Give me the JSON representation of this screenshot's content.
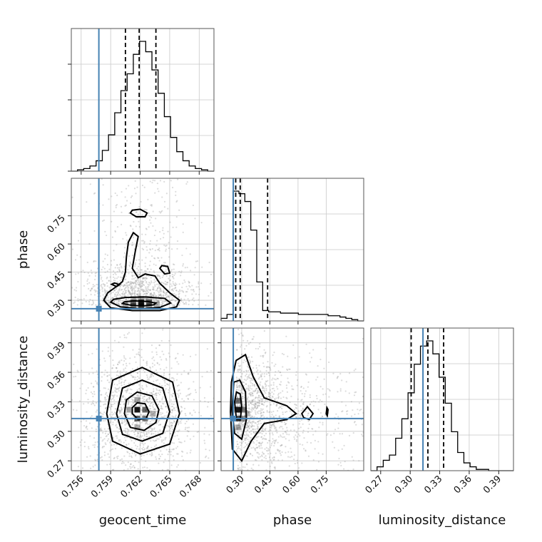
{
  "colors": {
    "truth": "#4682b4",
    "histogram": "#000000",
    "scatter": "#9a9a9a",
    "grid": "#c8c8c8"
  },
  "chart_data": {
    "type": "corner",
    "parameters": [
      "geocent_time",
      "phase",
      "luminosity_distance"
    ],
    "truths": {
      "geocent_time": 0.7578,
      "phase": 0.255,
      "luminosity_distance": 0.313
    },
    "quantiles": {
      "geocent_time": [
        0.7605,
        0.7619,
        0.7636
      ],
      "phase": [
        0.268,
        0.292,
        0.438
      ],
      "luminosity_distance": [
        0.301,
        0.318,
        0.334
      ]
    },
    "ranges": {
      "geocent_time": [
        0.755,
        0.7695
      ],
      "phase": [
        0.19,
        0.95
      ],
      "luminosity_distance": [
        0.26,
        0.405
      ]
    },
    "ticks": {
      "geocent_time": [
        "0.756",
        "0.759",
        "0.762",
        "0.765",
        "0.768"
      ],
      "phase": [
        "0.30",
        "0.45",
        "0.60",
        "0.75"
      ],
      "luminosity_distance": [
        "0.27",
        "0.30",
        "0.33",
        "0.36",
        "0.39"
      ]
    },
    "histograms": {
      "geocent_time": {
        "edges_range": [
          0.755,
          0.7695
        ],
        "counts": [
          0,
          1,
          2,
          4,
          8,
          16,
          28,
          45,
          62,
          75,
          90,
          100,
          92,
          78,
          60,
          42,
          26,
          15,
          8,
          4,
          2,
          1,
          0
        ]
      },
      "phase": {
        "edges_range": [
          0.19,
          0.95
        ],
        "counts": [
          2,
          5,
          100,
          98,
          92,
          70,
          30,
          8,
          7,
          7,
          6,
          6,
          6,
          5,
          5,
          5,
          5,
          5,
          4,
          4,
          3,
          2,
          1,
          0
        ]
      },
      "luminosity_distance": {
        "edges_range": [
          0.26,
          0.405
        ],
        "counts": [
          0,
          3,
          8,
          12,
          25,
          40,
          60,
          82,
          96,
          100,
          90,
          72,
          52,
          30,
          14,
          6,
          3,
          1,
          1,
          0,
          0,
          0,
          0
        ]
      }
    },
    "pairs": [
      {
        "x": "geocent_time",
        "y": "phase",
        "contours": [
          [
            [
              0.7602,
              0.283
            ],
            [
              0.7612,
              0.272
            ],
            [
              0.7624,
              0.27
            ],
            [
              0.7634,
              0.276
            ],
            [
              0.7636,
              0.285
            ],
            [
              0.7628,
              0.293
            ],
            [
              0.7614,
              0.297
            ],
            [
              0.7604,
              0.292
            ]
          ],
          [
            [
              0.759,
              0.29
            ],
            [
              0.76,
              0.265
            ],
            [
              0.762,
              0.255
            ],
            [
              0.764,
              0.262
            ],
            [
              0.7651,
              0.285
            ],
            [
              0.7645,
              0.31
            ],
            [
              0.7625,
              0.318
            ],
            [
              0.7605,
              0.315
            ],
            [
              0.7593,
              0.305
            ]
          ],
          [
            [
              0.7583,
              0.3
            ],
            [
              0.759,
              0.26
            ],
            [
              0.7612,
              0.245
            ],
            [
              0.764,
              0.245
            ],
            [
              0.7657,
              0.265
            ],
            [
              0.766,
              0.3
            ],
            [
              0.765,
              0.34
            ],
            [
              0.764,
              0.39
            ],
            [
              0.7635,
              0.43
            ],
            [
              0.7625,
              0.44
            ],
            [
              0.7618,
              0.42
            ],
            [
              0.7612,
              0.47
            ],
            [
              0.7615,
              0.56
            ],
            [
              0.7618,
              0.64
            ],
            [
              0.7613,
              0.66
            ],
            [
              0.7608,
              0.61
            ],
            [
              0.7606,
              0.53
            ],
            [
              0.7605,
              0.45
            ],
            [
              0.7602,
              0.4
            ],
            [
              0.7595,
              0.37
            ],
            [
              0.7587,
              0.34
            ]
          ],
          [
            [
              0.761,
              0.765
            ],
            [
              0.7616,
              0.745
            ],
            [
              0.7625,
              0.745
            ],
            [
              0.7627,
              0.765
            ],
            [
              0.762,
              0.785
            ],
            [
              0.7612,
              0.78
            ]
          ],
          [
            [
              0.764,
              0.47
            ],
            [
              0.7645,
              0.44
            ],
            [
              0.765,
              0.445
            ],
            [
              0.7648,
              0.48
            ],
            [
              0.7642,
              0.485
            ]
          ],
          [
            [
              0.7591,
              0.385
            ],
            [
              0.7596,
              0.373
            ],
            [
              0.7599,
              0.383
            ],
            [
              0.7594,
              0.392
            ]
          ]
        ],
        "density_cells": [
          [
            0.7613,
            0.288,
            0.55
          ],
          [
            0.7621,
            0.288,
            0.9
          ],
          [
            0.7629,
            0.288,
            0.6
          ],
          [
            0.7613,
            0.268,
            0.45
          ],
          [
            0.7621,
            0.268,
            0.7
          ],
          [
            0.7629,
            0.268,
            0.4
          ],
          [
            0.7605,
            0.278,
            0.3
          ],
          [
            0.7637,
            0.278,
            0.3
          ],
          [
            0.7621,
            0.308,
            0.3
          ],
          [
            0.7613,
            0.308,
            0.2
          ],
          [
            0.7629,
            0.308,
            0.2
          ]
        ]
      },
      {
        "x": "geocent_time",
        "y": "luminosity_distance",
        "contours": [
          [
            [
              0.7612,
              0.318
            ],
            [
              0.7618,
              0.312
            ],
            [
              0.7626,
              0.313
            ],
            [
              0.7629,
              0.32
            ],
            [
              0.7625,
              0.328
            ],
            [
              0.7617,
              0.329
            ],
            [
              0.7612,
              0.324
            ]
          ],
          [
            [
              0.7604,
              0.318
            ],
            [
              0.761,
              0.304
            ],
            [
              0.7624,
              0.301
            ],
            [
              0.7636,
              0.309
            ],
            [
              0.7639,
              0.322
            ],
            [
              0.7632,
              0.336
            ],
            [
              0.7617,
              0.34
            ],
            [
              0.7606,
              0.332
            ]
          ],
          [
            [
              0.7596,
              0.318
            ],
            [
              0.7602,
              0.297
            ],
            [
              0.7622,
              0.29
            ],
            [
              0.7643,
              0.298
            ],
            [
              0.765,
              0.32
            ],
            [
              0.7643,
              0.344
            ],
            [
              0.7622,
              0.352
            ],
            [
              0.7602,
              0.344
            ]
          ],
          [
            [
              0.7586,
              0.318
            ],
            [
              0.7592,
              0.29
            ],
            [
              0.762,
              0.277
            ],
            [
              0.765,
              0.287
            ],
            [
              0.766,
              0.318
            ],
            [
              0.7653,
              0.35
            ],
            [
              0.7622,
              0.365
            ],
            [
              0.7592,
              0.352
            ]
          ]
        ],
        "density_cells": [
          [
            0.7617,
            0.322,
            0.9
          ],
          [
            0.7625,
            0.322,
            0.6
          ],
          [
            0.7617,
            0.313,
            0.6
          ],
          [
            0.7625,
            0.313,
            0.5
          ],
          [
            0.7609,
            0.322,
            0.35
          ],
          [
            0.7633,
            0.318,
            0.3
          ],
          [
            0.7617,
            0.332,
            0.35
          ],
          [
            0.7617,
            0.304,
            0.3
          ]
        ]
      },
      {
        "x": "phase",
        "y": "luminosity_distance",
        "contours": [
          [
            [
              0.262,
              0.33
            ],
            [
              0.272,
              0.312
            ],
            [
              0.292,
              0.312
            ],
            [
              0.3,
              0.325
            ],
            [
              0.292,
              0.338
            ],
            [
              0.272,
              0.34
            ]
          ],
          [
            [
              0.248,
              0.322
            ],
            [
              0.262,
              0.298
            ],
            [
              0.3,
              0.292
            ],
            [
              0.325,
              0.312
            ],
            [
              0.32,
              0.34
            ],
            [
              0.29,
              0.352
            ],
            [
              0.258,
              0.35
            ]
          ],
          [
            [
              0.24,
              0.32
            ],
            [
              0.25,
              0.282
            ],
            [
              0.3,
              0.27
            ],
            [
              0.35,
              0.29
            ],
            [
              0.42,
              0.308
            ],
            [
              0.54,
              0.312
            ],
            [
              0.59,
              0.318
            ],
            [
              0.54,
              0.326
            ],
            [
              0.42,
              0.334
            ],
            [
              0.36,
              0.356
            ],
            [
              0.32,
              0.378
            ],
            [
              0.27,
              0.372
            ],
            [
              0.245,
              0.35
            ]
          ],
          [
            [
              0.62,
              0.318
            ],
            [
              0.65,
              0.325
            ],
            [
              0.68,
              0.318
            ],
            [
              0.66,
              0.312
            ],
            [
              0.63,
              0.314
            ]
          ],
          [
            [
              0.75,
              0.318
            ],
            [
              0.754,
              0.324
            ],
            [
              0.76,
              0.322
            ],
            [
              0.756,
              0.316
            ]
          ]
        ],
        "density_cells": [
          [
            0.28,
            0.322,
            0.9
          ],
          [
            0.28,
            0.313,
            0.7
          ],
          [
            0.28,
            0.331,
            0.55
          ],
          [
            0.305,
            0.322,
            0.5
          ],
          [
            0.305,
            0.313,
            0.4
          ],
          [
            0.255,
            0.322,
            0.35
          ],
          [
            0.28,
            0.304,
            0.35
          ],
          [
            0.33,
            0.318,
            0.25
          ]
        ]
      }
    ]
  }
}
